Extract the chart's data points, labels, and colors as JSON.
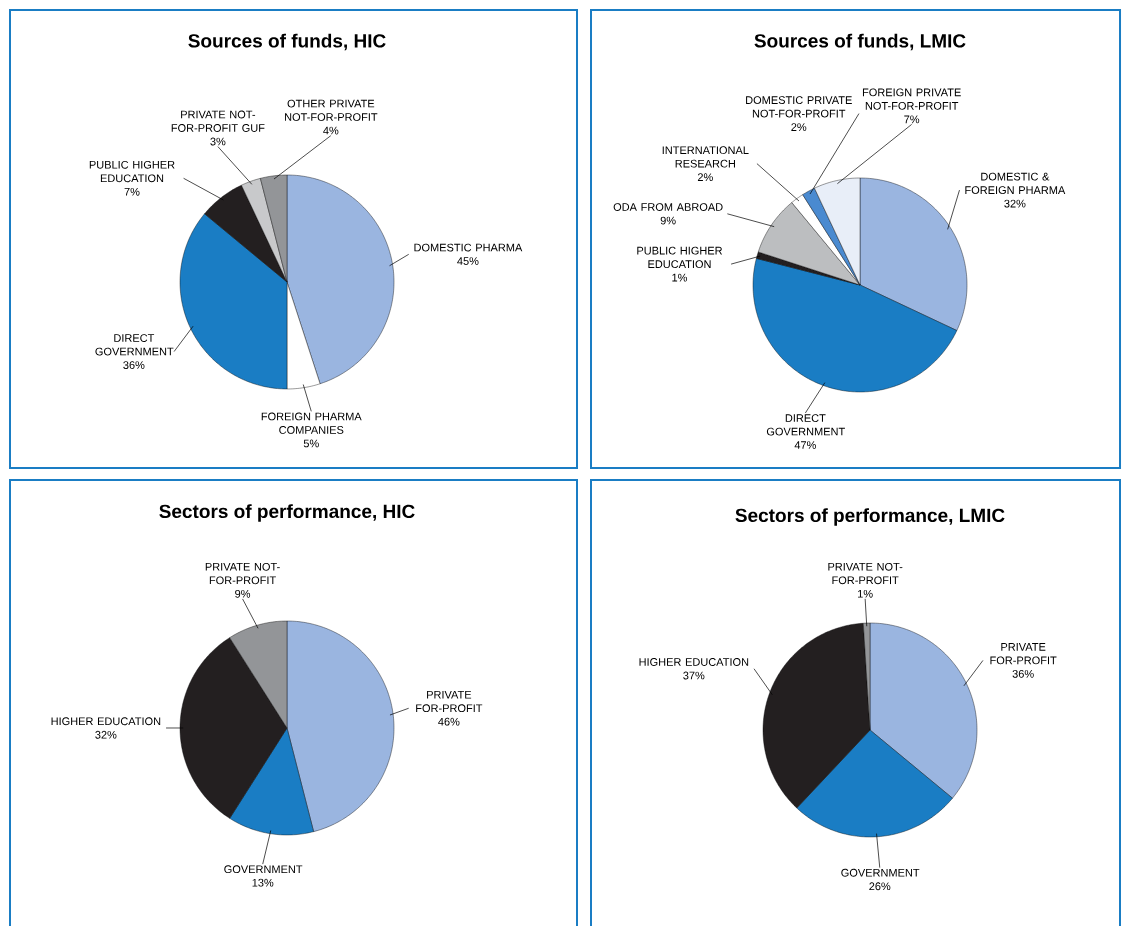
{
  "chart_data": [
    {
      "type": "pie",
      "title": "Sources of funds, HIC",
      "categories": [
        "DOMESTIC PHARMA",
        "FOREIGN PHARMA COMPANIES",
        "DIRECT GOVERNMENT",
        "PUBLIC HIGHER EDUCATION",
        "PRIVATE NOT-FOR-PROFIT GUF",
        "OTHER PRIVATE NOT-FOR-PROFIT"
      ],
      "values": [
        45,
        5,
        36,
        7,
        3,
        4
      ],
      "colors": [
        "#9ab5e0",
        "#ffffff",
        "#1a7dc4",
        "#231f20",
        "#c8c9cb",
        "#939598"
      ],
      "value_labels": [
        "45%",
        "5%",
        "36%",
        "7%",
        "3%",
        "4%"
      ]
    },
    {
      "type": "pie",
      "title": "Sources of funds, LMIC",
      "categories": [
        "DOMESTIC & FOREIGN PHARMA",
        "DIRECT GOVERNMENT",
        "PUBLIC HIGHER EDUCATION",
        "ODA FROM ABROAD",
        "INTERNATIONAL RESEARCH",
        "DOMESTIC PRIVATE NOT-FOR-PROFIT",
        "FOREIGN PRIVATE NOT-FOR-PROFIT"
      ],
      "values": [
        32,
        47,
        1,
        9,
        2,
        2,
        7
      ],
      "colors": [
        "#9ab5e0",
        "#1a7dc4",
        "#231f20",
        "#bcbec0",
        "#ffffff",
        "#4a8ad0",
        "#e8eef8"
      ],
      "value_labels": [
        "32%",
        "47%",
        "1%",
        "9%",
        "2%",
        "2%",
        "7%"
      ]
    },
    {
      "type": "pie",
      "title": "Sectors of performance, HIC",
      "categories": [
        "PRIVATE FOR-PROFIT",
        "GOVERNMENT",
        "HIGHER EDUCATION",
        "PRIVATE NOT-FOR-PROFIT"
      ],
      "values": [
        46,
        13,
        32,
        9
      ],
      "colors": [
        "#9ab5e0",
        "#1a7dc4",
        "#231f20",
        "#939598"
      ],
      "value_labels": [
        "46%",
        "13%",
        "32%",
        "9%"
      ]
    },
    {
      "type": "pie",
      "title": "Sectors of performance, LMIC",
      "categories": [
        "PRIVATE FOR-PROFIT",
        "GOVERNMENT",
        "HIGHER EDUCATION",
        "PRIVATE NOT-FOR-PROFIT"
      ],
      "values": [
        36,
        26,
        37,
        1
      ],
      "colors": [
        "#9ab5e0",
        "#1a7dc4",
        "#231f20",
        "#939598"
      ],
      "value_labels": [
        "36%",
        "26%",
        "37%",
        "1%"
      ]
    }
  ]
}
